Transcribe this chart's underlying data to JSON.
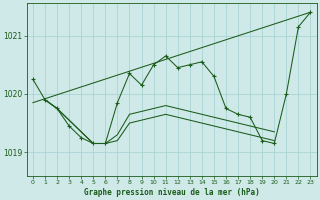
{
  "title": "Graphe pression niveau de la mer (hPa)",
  "bg_color": "#cfe8e8",
  "grid_color": "#aad4d4",
  "line_color": "#1a5c1a",
  "xlim": [
    -0.5,
    23.5
  ],
  "ylim": [
    1018.6,
    1021.55
  ],
  "yticks": [
    1019,
    1020,
    1021
  ],
  "xtick_labels": [
    "0",
    "1",
    "2",
    "3",
    "4",
    "5",
    "6",
    "7",
    "8",
    "9",
    "10",
    "11",
    "12",
    "13",
    "14",
    "15",
    "16",
    "17",
    "18",
    "19",
    "20",
    "21",
    "22",
    "23"
  ],
  "series": [
    {
      "x": [
        0,
        1,
        2,
        3,
        4,
        5,
        6,
        7,
        8,
        9,
        10,
        11,
        12,
        13,
        14,
        15,
        16,
        17,
        18,
        19,
        20,
        21,
        22,
        23
      ],
      "y": [
        1020.25,
        1019.9,
        1019.75,
        1019.45,
        1019.25,
        1019.15,
        1019.15,
        1019.85,
        1020.35,
        1020.15,
        1020.5,
        1020.65,
        1020.45,
        1020.5,
        1020.55,
        1020.3,
        1019.75,
        1019.65,
        1019.6,
        1019.2,
        1019.15,
        1020.0,
        1021.15,
        1021.4
      ],
      "style": "line_marker"
    },
    {
      "x": [
        0,
        23
      ],
      "y": [
        1019.85,
        1021.4
      ],
      "style": "line_only"
    },
    {
      "x": [
        1,
        2,
        3,
        4,
        5,
        6,
        7,
        8,
        9,
        10,
        11,
        12,
        13,
        14,
        15,
        16,
        17,
        18,
        19,
        20
      ],
      "y": [
        1019.9,
        1019.75,
        1019.55,
        1019.35,
        1019.15,
        1019.15,
        1019.3,
        1019.65,
        1019.7,
        1019.75,
        1019.8,
        1019.75,
        1019.7,
        1019.65,
        1019.6,
        1019.55,
        1019.5,
        1019.45,
        1019.4,
        1019.35
      ],
      "style": "line_only"
    },
    {
      "x": [
        1,
        2,
        3,
        4,
        5,
        6,
        7,
        8,
        9,
        10,
        11,
        12,
        13,
        14,
        15,
        16,
        17,
        18,
        19,
        20
      ],
      "y": [
        1019.9,
        1019.75,
        1019.55,
        1019.35,
        1019.15,
        1019.15,
        1019.2,
        1019.5,
        1019.55,
        1019.6,
        1019.65,
        1019.6,
        1019.55,
        1019.5,
        1019.45,
        1019.4,
        1019.35,
        1019.3,
        1019.25,
        1019.2
      ],
      "style": "line_only"
    }
  ]
}
